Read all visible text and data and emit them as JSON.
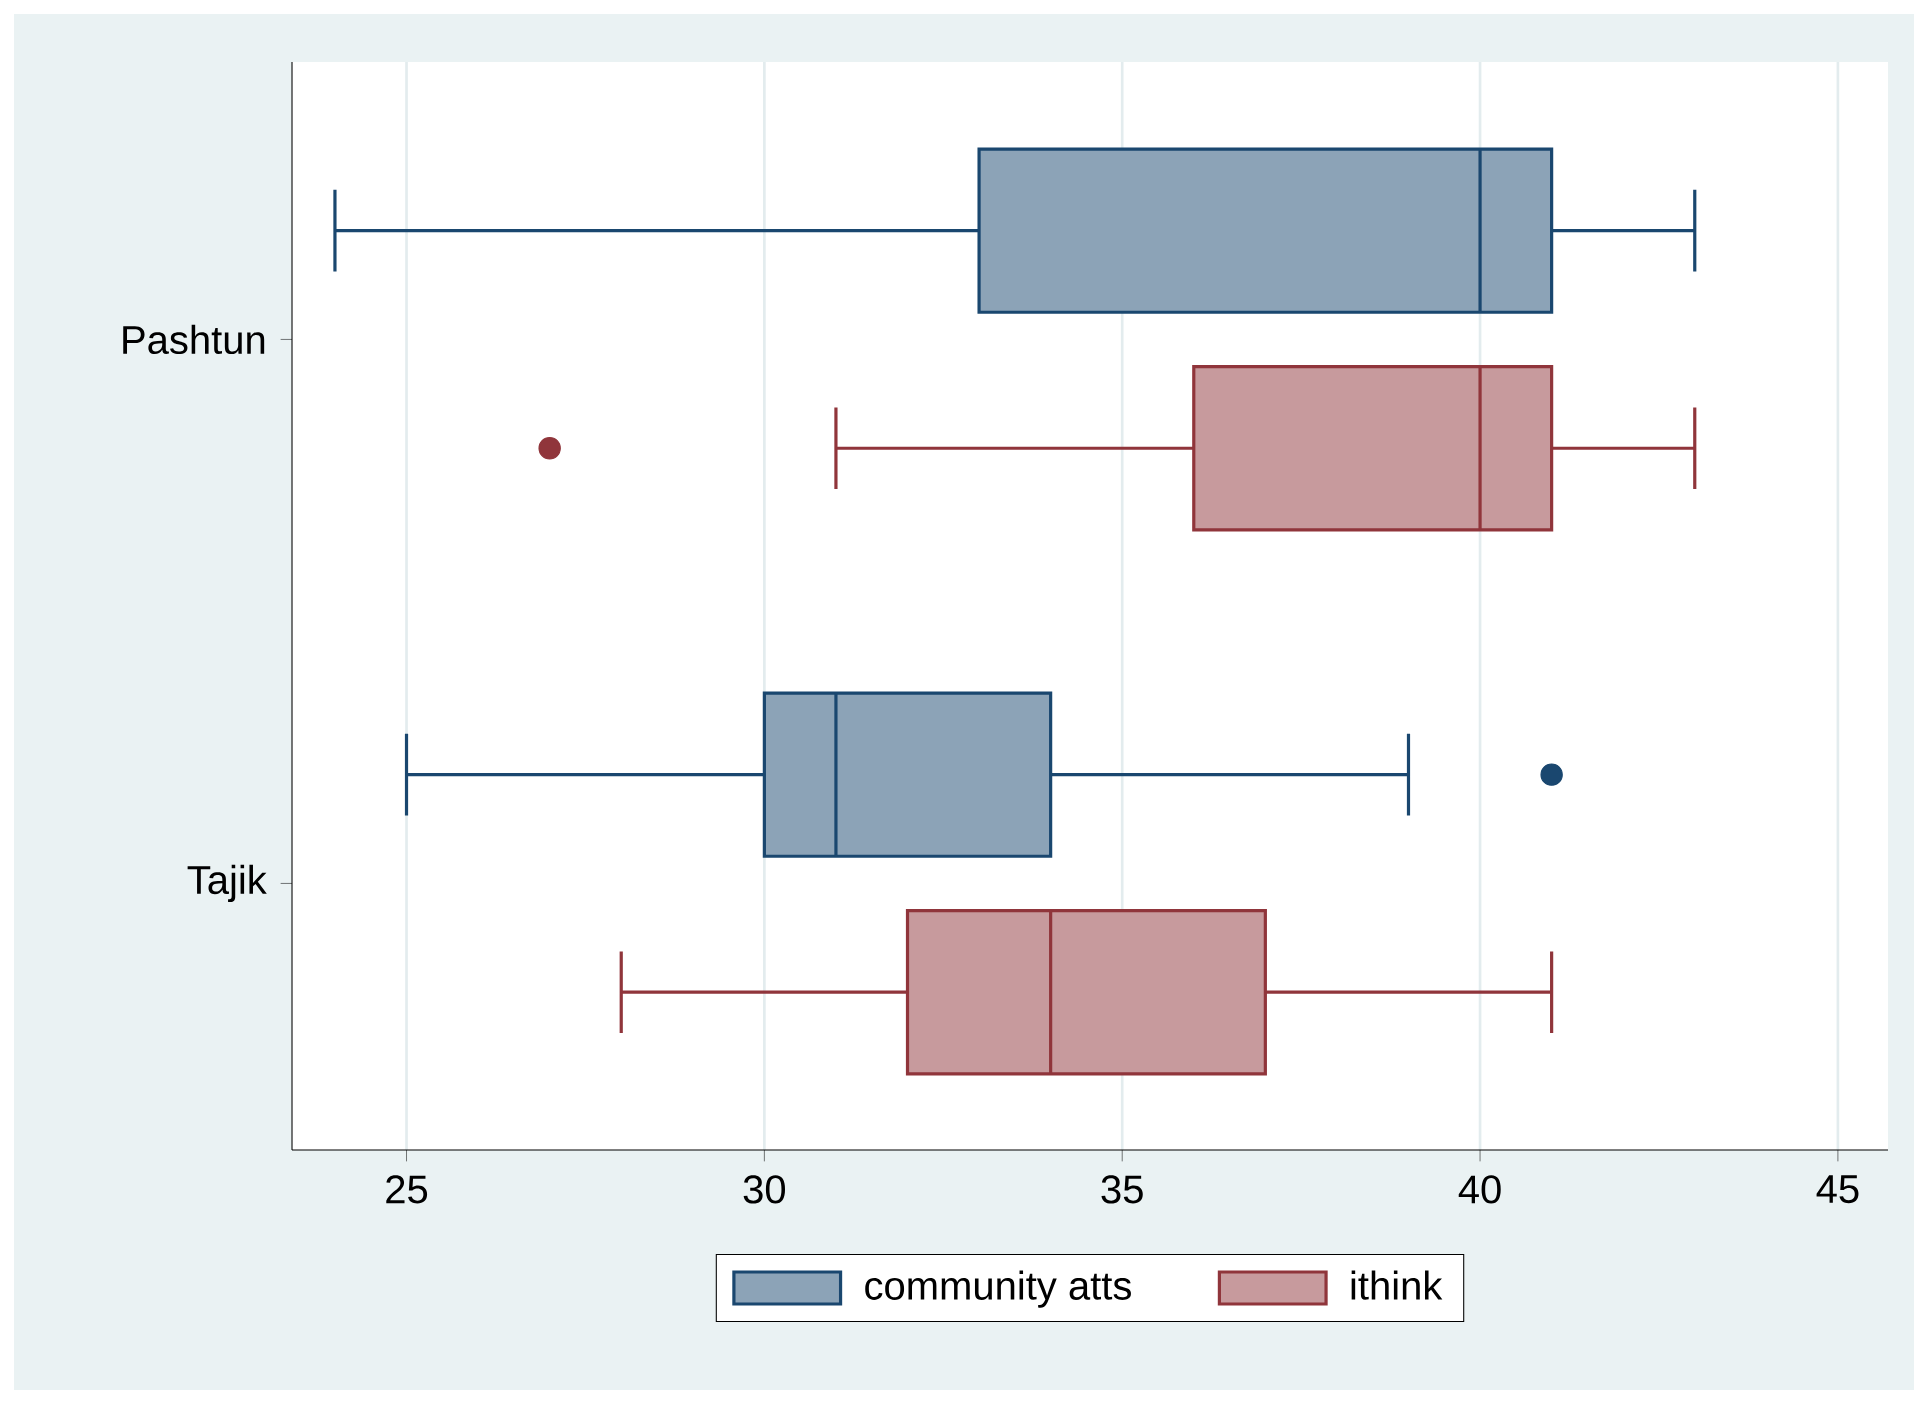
{
  "chart_data": {
    "type": "box",
    "orientation": "horizontal",
    "categories": [
      "Pashtun",
      "Tajik"
    ],
    "series": [
      {
        "name": "community atts",
        "color": "#1a476f",
        "boxes": [
          {
            "low": 24,
            "q1": 33,
            "median": 40,
            "q3": 41,
            "high": 43
          },
          {
            "low": 25,
            "q1": 30,
            "median": 31,
            "q3": 34,
            "high": 39,
            "outliers": [
              41
            ]
          }
        ]
      },
      {
        "name": "ithink",
        "color": "#90353b",
        "boxes": [
          {
            "low": 31,
            "q1": 36,
            "median": 40,
            "q3": 41,
            "high": 43,
            "outliers": [
              27
            ]
          },
          {
            "low": 28,
            "q1": 32,
            "median": 34,
            "q3": 37,
            "high": 41
          }
        ]
      }
    ],
    "xlim": [
      23.4,
      45.7
    ],
    "xticks": [
      25,
      30,
      35,
      40,
      45
    ],
    "grid": "x",
    "legend": "bottom"
  }
}
